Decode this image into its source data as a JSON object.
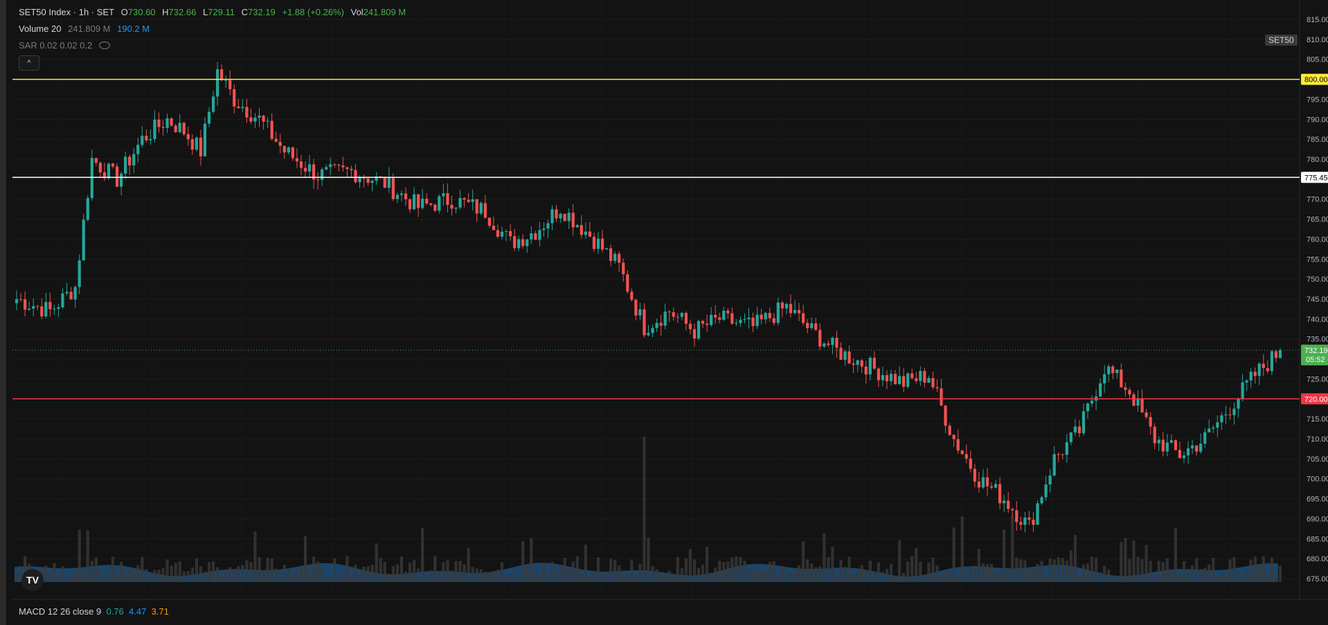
{
  "header": {
    "symbol_line": "SET50 Index · 1h · SET",
    "open_label": "O",
    "open_value": "730.60",
    "high_label": "H",
    "high_value": "732.66",
    "low_label": "L",
    "low_value": "729.11",
    "close_label": "C",
    "close_value": "732.19",
    "change": "+1.88 (+0.26%)",
    "vol_label": "Vol",
    "vol_value": "241.809 M"
  },
  "indicators": {
    "volume_name": "Volume 20",
    "volume_value": "241.809 M",
    "volume_ma": "190.2 M",
    "sar_name": "SAR 0.02 0.02 0.2",
    "macd_name": "MACD 12 26 close 9",
    "macd_v1": "0.76",
    "macd_v2": "4.47",
    "macd_v3": "3.71"
  },
  "controls": {
    "collapse_symbol": "^",
    "symbol_tag": "SET50",
    "logo_text": "TV"
  },
  "colors": {
    "up": "#26a69a",
    "down": "#ef5350",
    "yellow_line": "#ffeb3b",
    "white_line": "#ffffff",
    "red_line": "#f23645",
    "price_tag": "#4caf50"
  },
  "chart_data": {
    "type": "candlestick",
    "y_axis_ticks": [
      "815.00",
      "810.00",
      "805.00",
      "800.00",
      "795.00",
      "790.00",
      "785.00",
      "780.00",
      "775.00",
      "770.00",
      "765.00",
      "760.00",
      "755.00",
      "750.00",
      "745.00",
      "740.00",
      "735.00",
      "730.00",
      "725.00",
      "720.00",
      "715.00",
      "710.00",
      "705.00",
      "700.00",
      "695.00",
      "690.00",
      "685.00",
      "680.00",
      "675.00"
    ],
    "ylim": [
      671,
      817
    ],
    "horizontal_lines": [
      {
        "value": 800.0,
        "label": "800.00",
        "color": "#ffeb3b"
      },
      {
        "value": 775.45,
        "label": "775.45",
        "color": "#ffffff"
      },
      {
        "value": 720.0,
        "label": "720.00",
        "color": "#f23645"
      }
    ],
    "last_price": {
      "value": 732.19,
      "label": "732.19",
      "countdown": "05:52"
    },
    "price_path": [
      [
        0,
        745
      ],
      [
        8,
        742
      ],
      [
        14,
        748
      ],
      [
        18,
        780
      ],
      [
        24,
        775
      ],
      [
        30,
        785
      ],
      [
        36,
        790
      ],
      [
        40,
        787
      ],
      [
        44,
        782
      ],
      [
        48,
        802
      ],
      [
        52,
        795
      ],
      [
        58,
        790
      ],
      [
        64,
        782
      ],
      [
        72,
        776
      ],
      [
        80,
        777
      ],
      [
        88,
        774
      ],
      [
        96,
        768
      ],
      [
        104,
        770
      ],
      [
        112,
        767
      ],
      [
        118,
        759
      ],
      [
        124,
        762
      ],
      [
        130,
        768
      ],
      [
        138,
        760
      ],
      [
        144,
        753
      ],
      [
        150,
        738
      ],
      [
        156,
        742
      ],
      [
        162,
        737
      ],
      [
        168,
        740
      ],
      [
        176,
        738
      ],
      [
        184,
        743
      ],
      [
        190,
        737
      ],
      [
        196,
        732
      ],
      [
        204,
        728
      ],
      [
        212,
        724
      ],
      [
        218,
        726
      ],
      [
        224,
        710
      ],
      [
        230,
        700
      ],
      [
        236,
        695
      ],
      [
        242,
        688
      ],
      [
        248,
        705
      ],
      [
        254,
        712
      ],
      [
        260,
        728
      ],
      [
        266,
        722
      ],
      [
        272,
        710
      ],
      [
        278,
        706
      ],
      [
        284,
        710
      ],
      [
        290,
        718
      ],
      [
        296,
        726
      ],
      [
        302,
        732
      ]
    ],
    "volume_spike_indices": [
      150,
      226,
      238
    ]
  }
}
